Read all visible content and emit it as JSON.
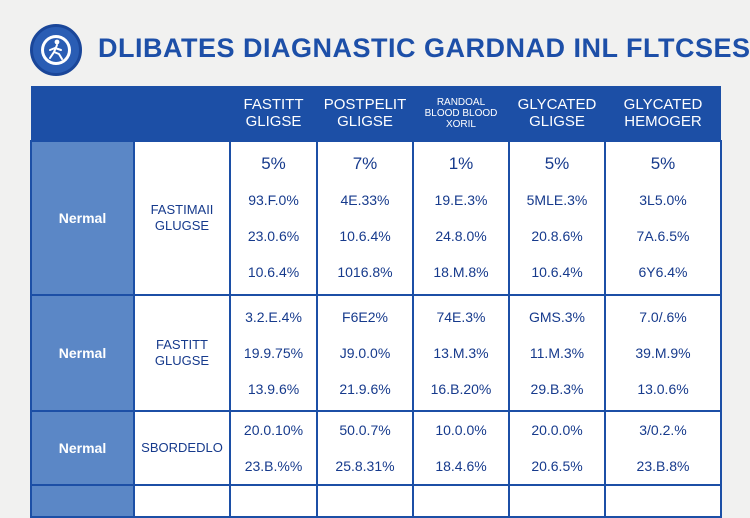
{
  "title": "DLIBATES DIAGNASTIC GARDNAD INL FLTCSES",
  "logo_icon": "figure-walking-icon",
  "colors": {
    "header": "#1c4fa6",
    "row_label": "#5b87c6",
    "title": "#1d4fa8",
    "background": "#f1f1f0"
  },
  "columns": [
    {
      "line1": "",
      "line2": ""
    },
    {
      "line1": "",
      "line2": ""
    },
    {
      "line1": "FASTITT",
      "line2": "GLIGSE"
    },
    {
      "line1": "POSTPELIT",
      "line2": "GLIGSE"
    },
    {
      "line1": "RANDOAL",
      "line2": "BLOOD BLOOD",
      "line3": "XORIL"
    },
    {
      "line1": "GLYCATED",
      "line2": "GLIGSE"
    },
    {
      "line1": "GLYCATED",
      "line2": "HEMOGER"
    }
  ],
  "rows": [
    {
      "label": "Nermal",
      "test_line1": "FASTIMAII",
      "test_line2": "GLUGSE",
      "cells": [
        [
          "5%",
          "93.F.0%",
          "23.0.6%",
          "10.6.4%"
        ],
        [
          "7%",
          "4E.33%",
          "10.6.4%",
          "1016.8%"
        ],
        [
          "1%",
          "19.E.3%",
          "24.8.0%",
          "18.M.8%"
        ],
        [
          "5%",
          "5MLE.3%",
          "20.8.6%",
          "10.6.4%"
        ],
        [
          "5%",
          "3L5.0%",
          "7A.6.5%",
          "6Y6.4%"
        ]
      ]
    },
    {
      "label": "Nermal",
      "test_line1": "FASTITT",
      "test_line2": "GLUGSE",
      "cells": [
        [
          "3.2.E.4%",
          "19.9.75%",
          "13.9.6%"
        ],
        [
          "F6E2%",
          "J9.0.0%",
          "21.9.6%"
        ],
        [
          "74E.3%",
          "13.M.3%",
          "16.B.20%"
        ],
        [
          "GMS.3%",
          "11.M.3%",
          "29.B.3%"
        ],
        [
          "7.0/.6%",
          "39.M.9%",
          "13.0.6%"
        ]
      ]
    },
    {
      "label": "Nermal",
      "test_line1": "SBORDEDLO",
      "test_line2": "",
      "cells": [
        [
          "20.0.10%",
          "23.B.%%"
        ],
        [
          "50.0.7%",
          "25.8.31%"
        ],
        [
          "10.0.0%",
          "18.4.6%"
        ],
        [
          "20.0.0%",
          "20.6.5%"
        ],
        [
          "3/0.2.%",
          "23.B.8%"
        ]
      ]
    },
    {
      "label": "",
      "test_line1": "",
      "test_line2": "",
      "cells": [
        [
          ""
        ],
        [
          ""
        ],
        [
          ""
        ],
        [
          ""
        ],
        [
          ""
        ]
      ]
    }
  ]
}
